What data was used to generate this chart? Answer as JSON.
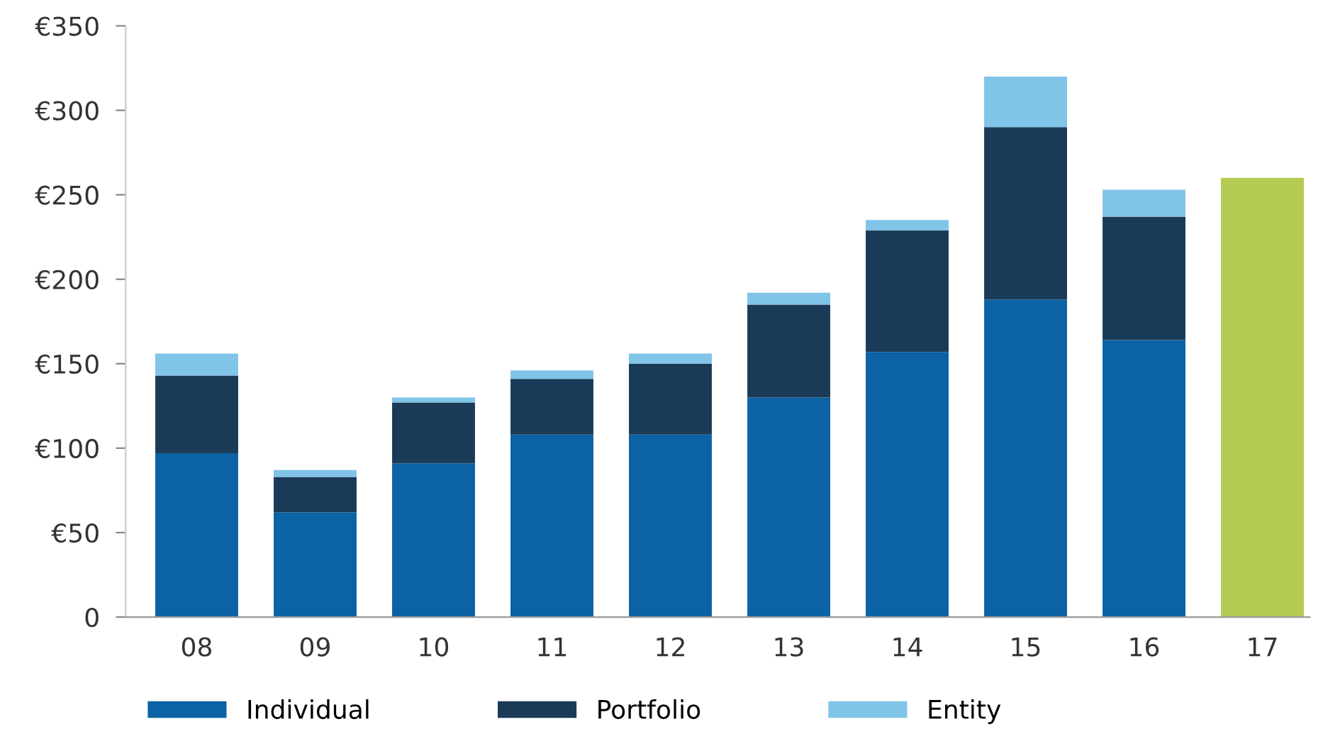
{
  "chart_data": {
    "type": "bar",
    "stacked": true,
    "categories": [
      "08",
      "09",
      "10",
      "11",
      "12",
      "13",
      "14",
      "15",
      "16",
      "17"
    ],
    "series": [
      {
        "name": "Individual",
        "color": "#0b62a4",
        "values": [
          97,
          62,
          91,
          108,
          108,
          130,
          157,
          188,
          164,
          null
        ]
      },
      {
        "name": "Portfolio",
        "color": "#1a3b57",
        "values": [
          46,
          21,
          36,
          33,
          42,
          55,
          72,
          102,
          73,
          null
        ]
      },
      {
        "name": "Entity",
        "color": "#80c4e8",
        "values": [
          13,
          4,
          3,
          5,
          6,
          7,
          6,
          30,
          16,
          null
        ]
      },
      {
        "color": "#b3cb52",
        "values": [
          null,
          null,
          null,
          null,
          null,
          null,
          null,
          null,
          null,
          260
        ]
      }
    ],
    "ylim": [
      0,
      350
    ],
    "yticks": [
      0,
      {
        "value": 50,
        "label": "€50"
      },
      {
        "value": 100,
        "label": "€100"
      },
      {
        "value": 150,
        "label": "€150"
      },
      {
        "value": 200,
        "label": "€200"
      },
      {
        "value": 250,
        "label": "€250"
      },
      {
        "value": 300,
        "label": "€300"
      },
      {
        "value": 350,
        "label": "€350"
      }
    ],
    "grid": false,
    "legend": "bottom"
  }
}
